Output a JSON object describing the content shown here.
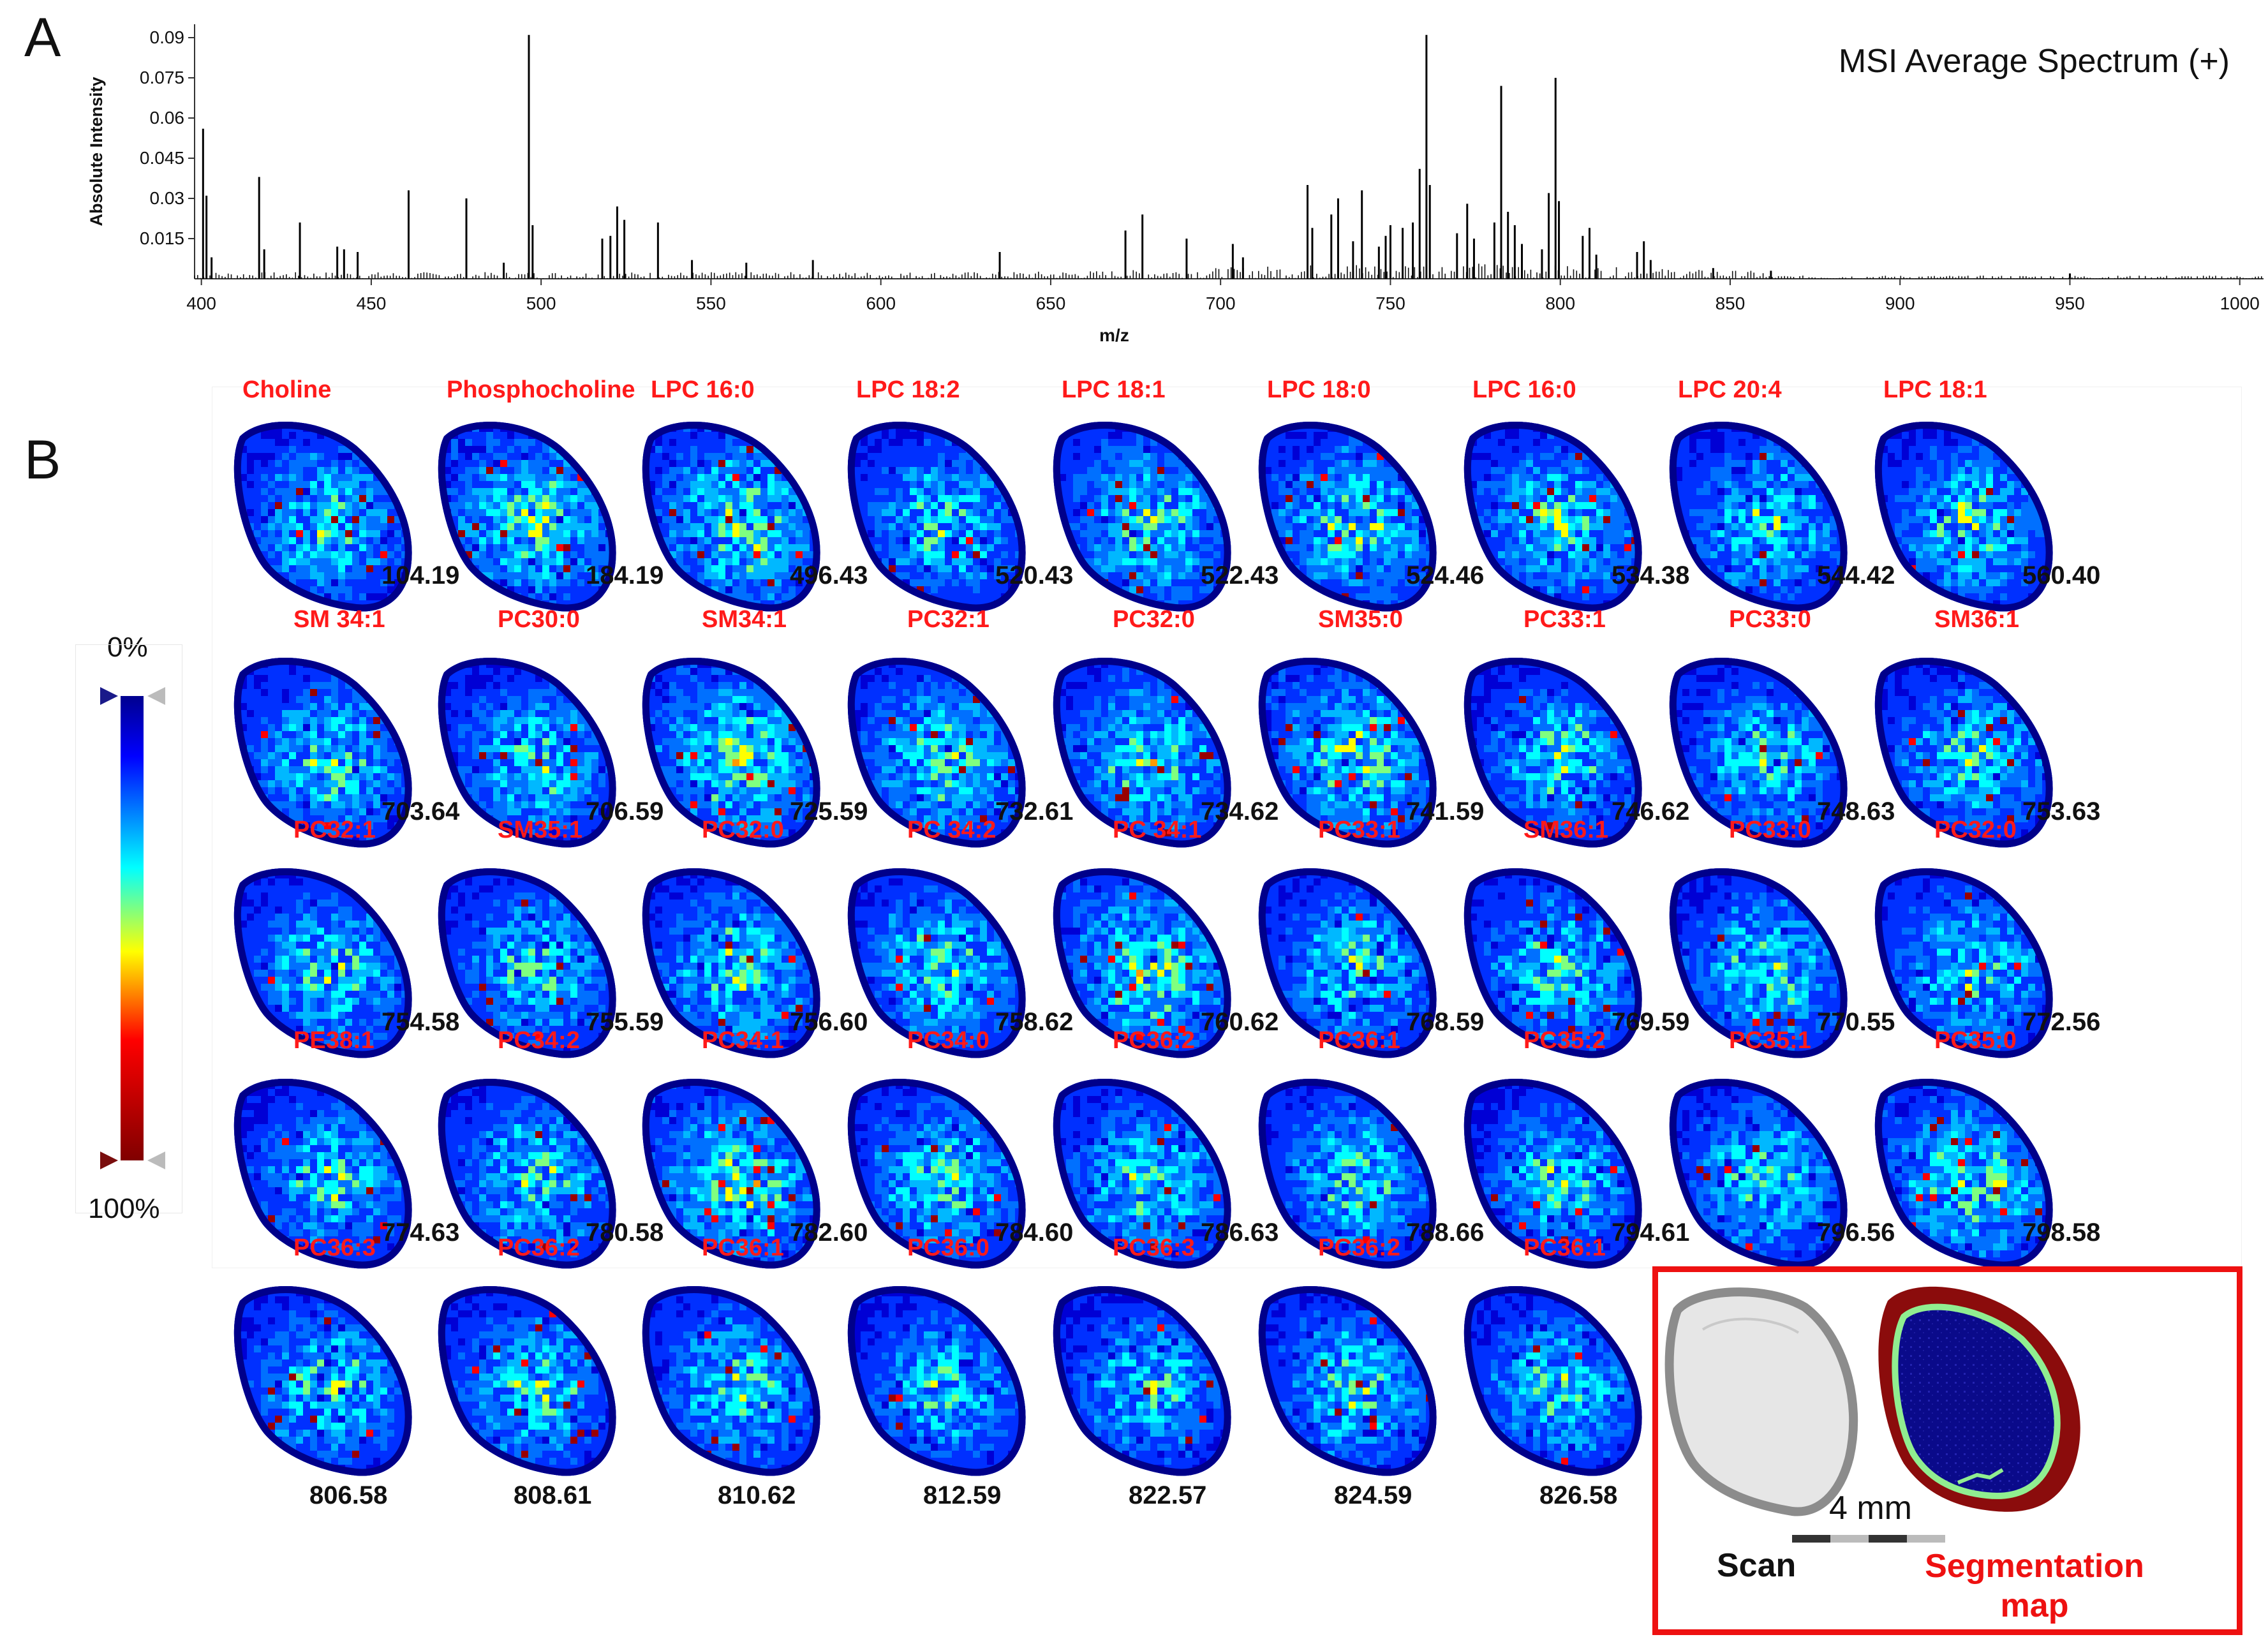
{
  "panels": {
    "a": "A",
    "b": "B"
  },
  "spectrum": {
    "title": "MSI Average Spectrum (+)",
    "ylabel": "Absolute Intensity",
    "xlabel": "m/z",
    "yticks": [
      "0.015",
      "0.03",
      "0.045",
      "0.06",
      "0.075",
      "0.09"
    ],
    "xticks": [
      "400",
      "450",
      "500",
      "550",
      "600",
      "650",
      "700",
      "750",
      "800",
      "850",
      "900",
      "950",
      "1000"
    ]
  },
  "chart_data": {
    "type": "line",
    "title": "MSI Average Spectrum (+)",
    "xlabel": "m/z",
    "ylabel": "Absolute Intensity",
    "xlim": [
      398,
      1007
    ],
    "ylim": [
      0,
      0.095
    ],
    "peaks": [
      {
        "x": 400.5,
        "y": 0.056
      },
      {
        "x": 401.5,
        "y": 0.031
      },
      {
        "x": 403,
        "y": 0.008
      },
      {
        "x": 417,
        "y": 0.038
      },
      {
        "x": 418.5,
        "y": 0.011
      },
      {
        "x": 429,
        "y": 0.021
      },
      {
        "x": 440,
        "y": 0.012
      },
      {
        "x": 442,
        "y": 0.011
      },
      {
        "x": 446,
        "y": 0.01
      },
      {
        "x": 461,
        "y": 0.033
      },
      {
        "x": 478,
        "y": 0.03
      },
      {
        "x": 489,
        "y": 0.006
      },
      {
        "x": 496.4,
        "y": 0.091
      },
      {
        "x": 497.5,
        "y": 0.02
      },
      {
        "x": 518,
        "y": 0.015
      },
      {
        "x": 520.4,
        "y": 0.016
      },
      {
        "x": 522.4,
        "y": 0.027
      },
      {
        "x": 524.5,
        "y": 0.022
      },
      {
        "x": 534.4,
        "y": 0.021
      },
      {
        "x": 544.4,
        "y": 0.007
      },
      {
        "x": 560.4,
        "y": 0.006
      },
      {
        "x": 580,
        "y": 0.007
      },
      {
        "x": 635,
        "y": 0.01
      },
      {
        "x": 672,
        "y": 0.018
      },
      {
        "x": 677,
        "y": 0.024
      },
      {
        "x": 690,
        "y": 0.015
      },
      {
        "x": 703.6,
        "y": 0.013
      },
      {
        "x": 706.6,
        "y": 0.008
      },
      {
        "x": 725.6,
        "y": 0.035
      },
      {
        "x": 727,
        "y": 0.019
      },
      {
        "x": 732.6,
        "y": 0.024
      },
      {
        "x": 734.6,
        "y": 0.03
      },
      {
        "x": 739,
        "y": 0.014
      },
      {
        "x": 741.6,
        "y": 0.033
      },
      {
        "x": 746.6,
        "y": 0.012
      },
      {
        "x": 748.6,
        "y": 0.016
      },
      {
        "x": 750,
        "y": 0.02
      },
      {
        "x": 753.6,
        "y": 0.019
      },
      {
        "x": 756.6,
        "y": 0.021
      },
      {
        "x": 758.6,
        "y": 0.041
      },
      {
        "x": 760.6,
        "y": 0.091
      },
      {
        "x": 761.6,
        "y": 0.035
      },
      {
        "x": 769.6,
        "y": 0.017
      },
      {
        "x": 772.6,
        "y": 0.028
      },
      {
        "x": 774.6,
        "y": 0.015
      },
      {
        "x": 780.6,
        "y": 0.021
      },
      {
        "x": 782.6,
        "y": 0.072
      },
      {
        "x": 784.6,
        "y": 0.025
      },
      {
        "x": 786.6,
        "y": 0.02
      },
      {
        "x": 788.7,
        "y": 0.013
      },
      {
        "x": 794.6,
        "y": 0.011
      },
      {
        "x": 796.6,
        "y": 0.032
      },
      {
        "x": 798.6,
        "y": 0.075
      },
      {
        "x": 799.6,
        "y": 0.029
      },
      {
        "x": 806.6,
        "y": 0.016
      },
      {
        "x": 808.6,
        "y": 0.019
      },
      {
        "x": 810.6,
        "y": 0.009
      },
      {
        "x": 822.6,
        "y": 0.01
      },
      {
        "x": 824.6,
        "y": 0.014
      },
      {
        "x": 826.6,
        "y": 0.007
      },
      {
        "x": 845,
        "y": 0.004
      },
      {
        "x": 862,
        "y": 0.003
      },
      {
        "x": 950,
        "y": 0.002
      }
    ]
  },
  "colorbar": {
    "top_label": "0%",
    "bottom_label": "100%"
  },
  "ion_images": [
    {
      "name": "Choline",
      "mz": "104.19",
      "hot": 0.35
    },
    {
      "name": "Phosphocholine",
      "mz": "184.19",
      "hot": 0.55
    },
    {
      "name": "LPC 16:0",
      "mz": "496.43",
      "hot": 0.6
    },
    {
      "name": "LPC 18:2",
      "mz": "520.43",
      "hot": 0.3
    },
    {
      "name": "LPC 18:1",
      "mz": "522.43",
      "hot": 0.5
    },
    {
      "name": "LPC 18:0",
      "mz": "524.46",
      "hot": 0.5
    },
    {
      "name": "LPC 16:0",
      "mz": "534.38",
      "hot": 0.45
    },
    {
      "name": "LPC 20:4",
      "mz": "544.42",
      "hot": 0.3
    },
    {
      "name": "LPC 18:1",
      "mz": "560.40",
      "hot": 0.3
    },
    {
      "name": "SM 34:1",
      "mz": "703.64",
      "hot": 0.4
    },
    {
      "name": "PC30:0",
      "mz": "706.59",
      "hot": 0.3
    },
    {
      "name": "SM34:1",
      "mz": "725.59",
      "hot": 0.6
    },
    {
      "name": "PC32:1",
      "mz": "732.61",
      "hot": 0.45
    },
    {
      "name": "PC32:0",
      "mz": "734.62",
      "hot": 0.45
    },
    {
      "name": "SM35:0",
      "mz": "741.59",
      "hot": 0.6
    },
    {
      "name": "PC33:1",
      "mz": "746.62",
      "hot": 0.3
    },
    {
      "name": "PC33:0",
      "mz": "748.63",
      "hot": 0.3
    },
    {
      "name": "SM36:1",
      "mz": "753.63",
      "hot": 0.35
    },
    {
      "name": "PC32:1",
      "mz": "754.58",
      "hot": 0.3
    },
    {
      "name": "SM35:1",
      "mz": "755.59",
      "hot": 0.3
    },
    {
      "name": "PC32:0",
      "mz": "756.60",
      "hot": 0.45
    },
    {
      "name": "PC 34:2",
      "mz": "758.62",
      "hot": 0.45
    },
    {
      "name": "PC 34:1",
      "mz": "760.62",
      "hot": 0.6
    },
    {
      "name": "PC33:1",
      "mz": "768.59",
      "hot": 0.3
    },
    {
      "name": "SM36:1",
      "mz": "769.59",
      "hot": 0.4
    },
    {
      "name": "PC33:0",
      "mz": "770.55",
      "hot": 0.35
    },
    {
      "name": "PC32:0",
      "mz": "772.56",
      "hot": 0.4
    },
    {
      "name": "PE38:1",
      "mz": "774.63",
      "hot": 0.3
    },
    {
      "name": "PC34:2",
      "mz": "780.58",
      "hot": 0.35
    },
    {
      "name": "PC34:1",
      "mz": "782.60",
      "hot": 0.6
    },
    {
      "name": "PC34:0",
      "mz": "784.60",
      "hot": 0.4
    },
    {
      "name": "PC36:2",
      "mz": "786.63",
      "hot": 0.4
    },
    {
      "name": "PC36:1",
      "mz": "788.66",
      "hot": 0.3
    },
    {
      "name": "PC35:2",
      "mz": "794.61",
      "hot": 0.2
    },
    {
      "name": "PC35:1",
      "mz": "796.56",
      "hot": 0.35
    },
    {
      "name": "PC35:0",
      "mz": "798.58",
      "hot": 0.6
    },
    {
      "name": "PC36:3",
      "mz": "806.58",
      "hot": 0.3
    },
    {
      "name": "PC36:2",
      "mz": "808.61",
      "hot": 0.35
    },
    {
      "name": "PC36:1",
      "mz": "810.62",
      "hot": 0.35
    },
    {
      "name": "PC36:0",
      "mz": "812.59",
      "hot": 0.25
    },
    {
      "name": "PC36:3",
      "mz": "822.57",
      "hot": 0.2
    },
    {
      "name": "PC36:2",
      "mz": "824.59",
      "hot": 0.35
    },
    {
      "name": "PC36:1",
      "mz": "826.58",
      "hot": 0.3
    }
  ],
  "inset": {
    "scale_label": "4 mm",
    "scan_label": "Scan",
    "seg_label": "Segmentation map"
  }
}
